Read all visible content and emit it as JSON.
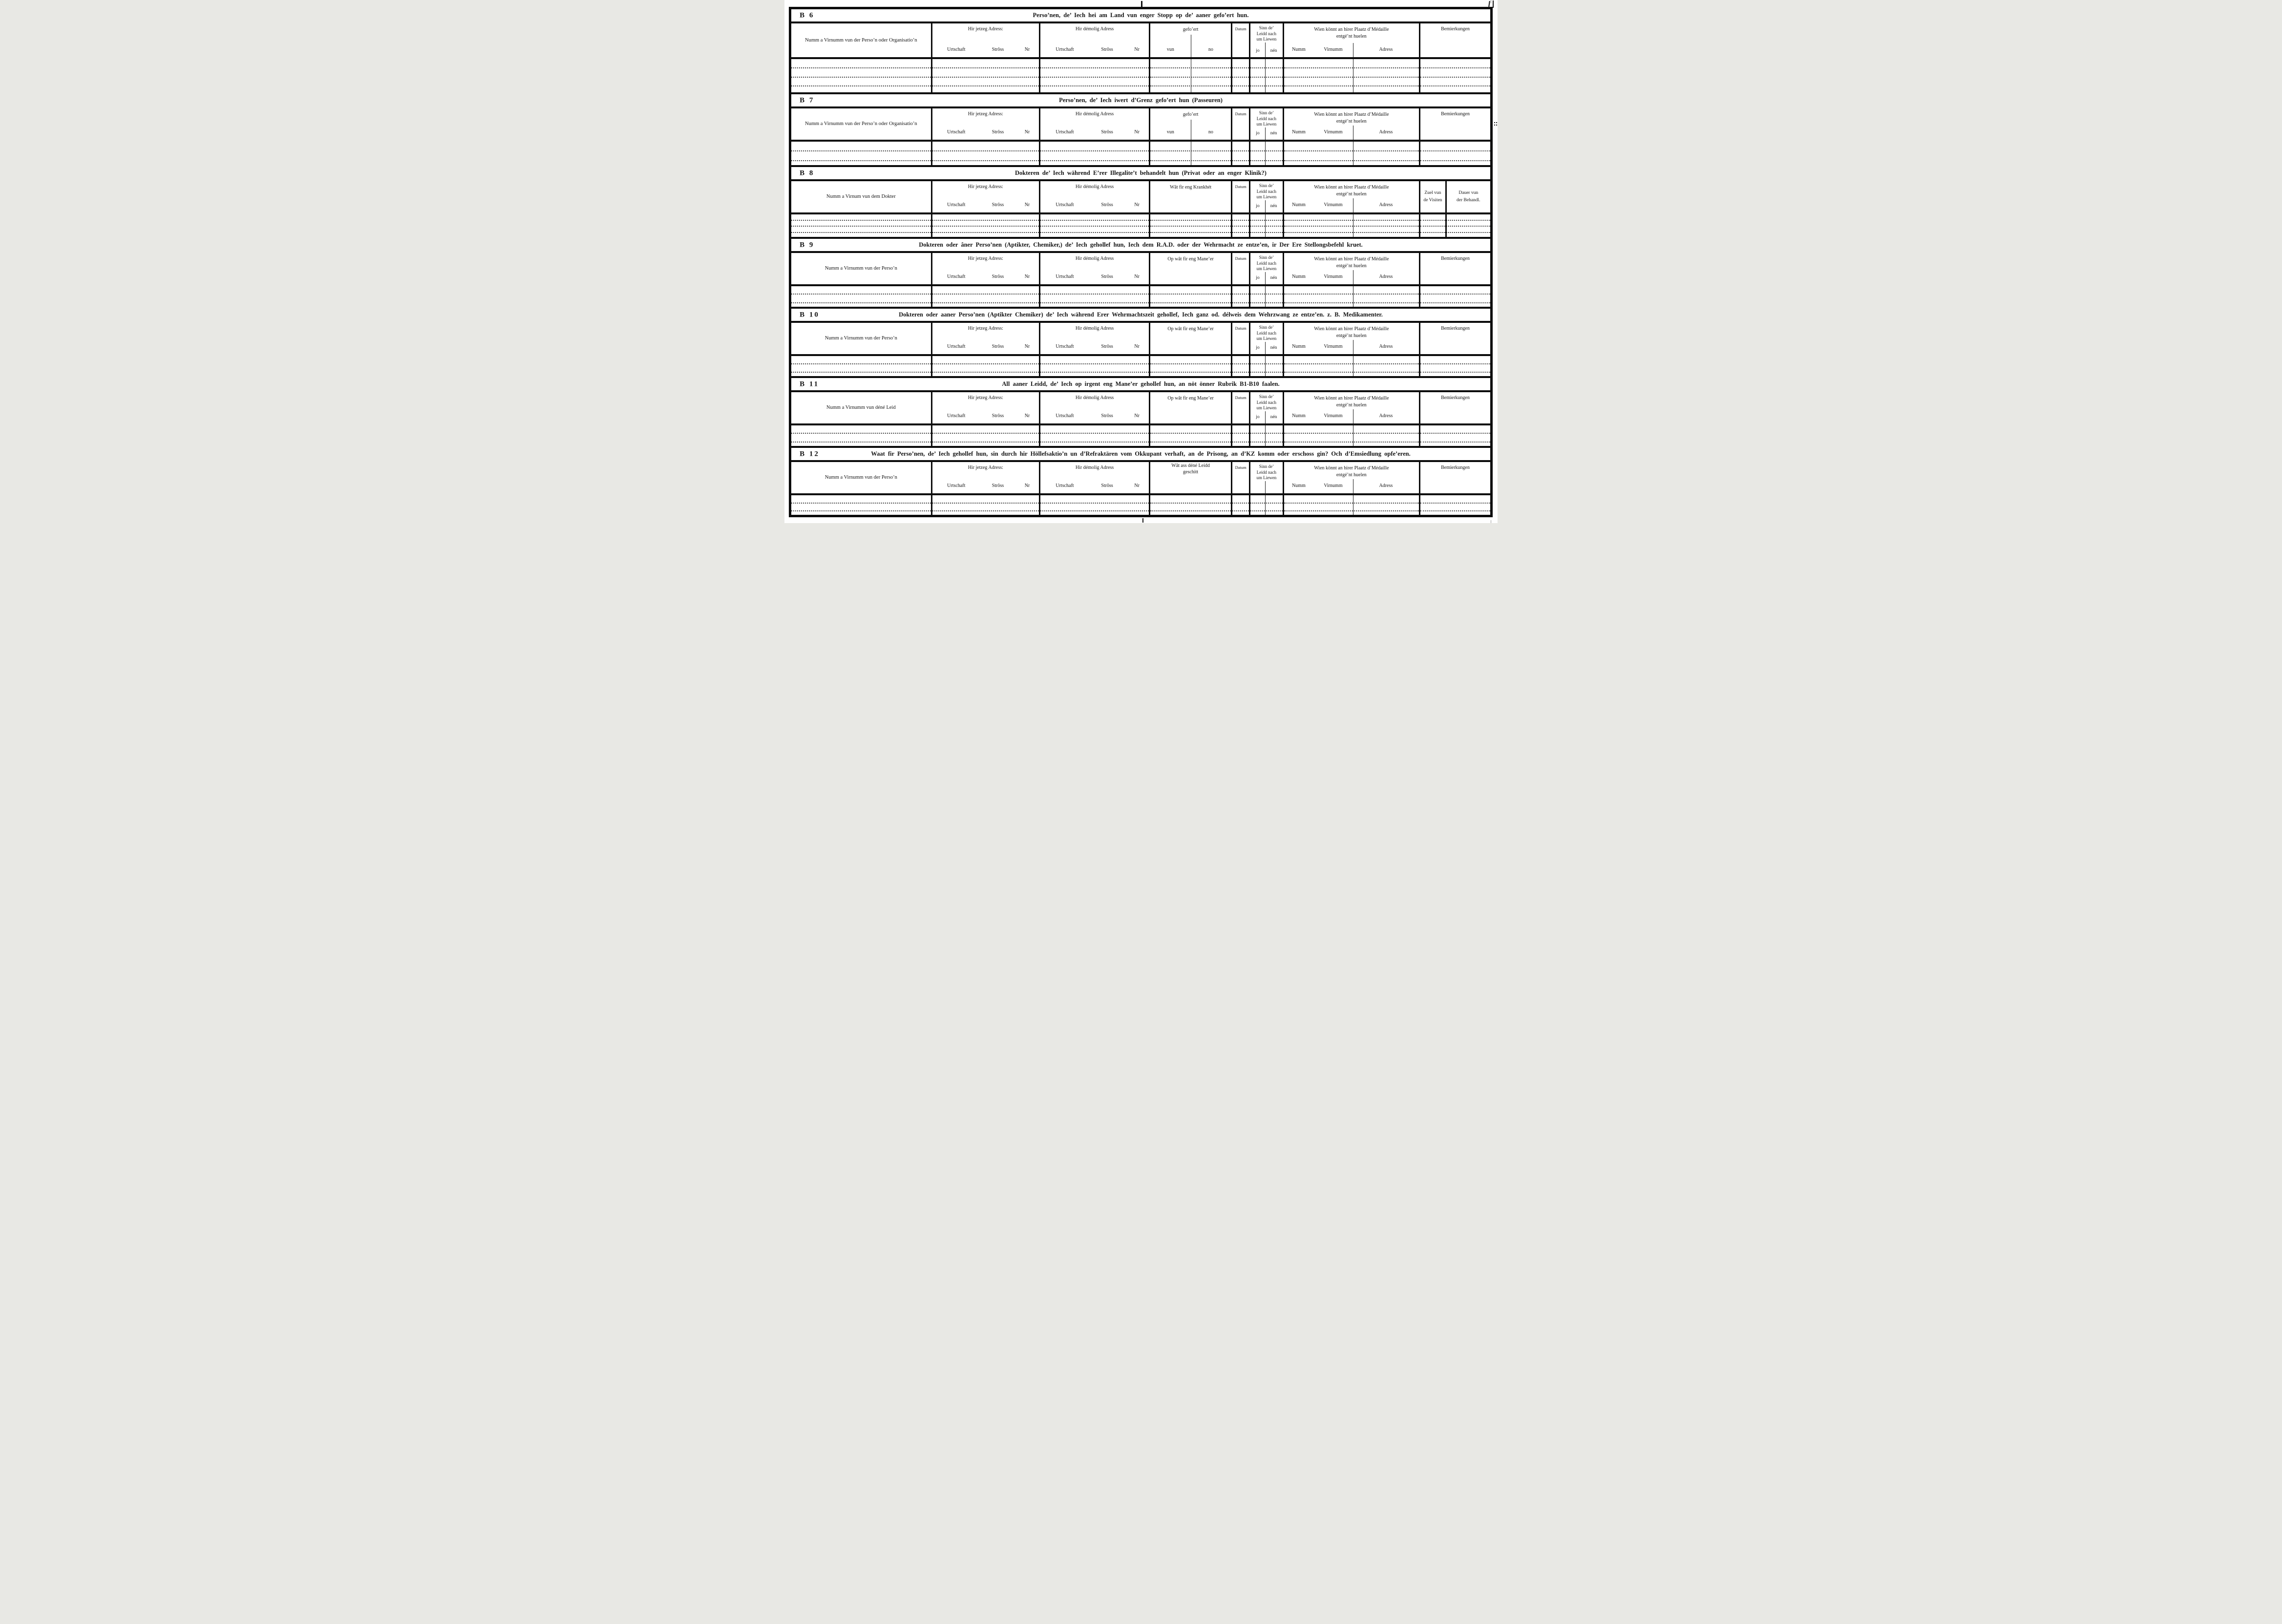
{
  "form": {
    "headers": {
      "jetzeg": {
        "label": "Hir jetzeg Adress:",
        "urtschaft": "Urtschaft",
        "stross": "Strôss",
        "nr": "Nr"
      },
      "demolig": {
        "label": "Hir démolig Adress",
        "urtschaft": "Urtschaft",
        "stross": "Strôss",
        "nr": "Nr"
      },
      "datum": "Datum",
      "sinn": {
        "l1": "Sinn de’",
        "l2": "Leidd nach",
        "l3": "um Liewen",
        "jo": "jo",
        "nen": "nén"
      },
      "wien": {
        "l1": "Wien könnt an hirer Plaatz d’Médaille",
        "l2": "entgé’nt huelen",
        "numm": "Numm",
        "virnumm": "Virnumm",
        "adress": "Adress"
      },
      "bemierkungen": "Bemierkungen",
      "zuel": {
        "l1": "Zuel vun",
        "l2": "de Visiten"
      },
      "dauer": {
        "l1": "Dauer vun",
        "l2": "der Behandl."
      }
    },
    "sections": [
      {
        "id": "B 6",
        "title": "Perso’nen, de’ Iech hei am Land vun enger Stopp op de’ aaner gefo’ert hun.",
        "name_header": "Numm a Virnumm vun der Perso’n oder Organisatio’n",
        "middle": {
          "l1": "gefo’ert",
          "l2": "",
          "s1": "vun",
          "s2": "no",
          "align": "top"
        },
        "sinn_sub": true,
        "right": "bem",
        "rows": 3
      },
      {
        "id": "B 7",
        "title": "Perso’nen, de’ Iech iwert d’Grenz gefo’ert hun (Passeuren)",
        "name_header": "Numm a Virnumm vun der Perso’n oder Organisatio’n",
        "middle": {
          "l1": "gefo’ert",
          "l2": "",
          "s1": "vun",
          "s2": "no",
          "align": "top"
        },
        "sinn_sub": true,
        "right": "bem",
        "rows": 2
      },
      {
        "id": "B 8",
        "title": "Dokteren de’ Iech während E’rer Illegalite’t behandelt hun (Privat oder an enger Klinik?)",
        "name_header": "Numm a Virnum vun dem Dokter",
        "middle": {
          "l1": "Wât fir eng Krankhét",
          "l2": "",
          "s1": "",
          "s2": "",
          "align": "top"
        },
        "sinn_sub": true,
        "right": "visits",
        "rows": 3
      },
      {
        "id": "B 9",
        "title": "Dokteren oder âner Perso’nen (Aptikter, Chemiker,) de’ Iech gehollef hun, Iech dem R.A.D. oder der Wehrmacht ze entze’en, ir Der Ere Stellongsbefehl kruet.",
        "name_header": "Numm a Virnumm vun der Perso’n",
        "middle": {
          "l1": "Op wât fir eng Mane’er",
          "l2": "",
          "s1": "",
          "s2": "",
          "align": "top"
        },
        "sinn_sub": true,
        "right": "bem",
        "rows": 2
      },
      {
        "id": "B 10",
        "title": "Dokteren oder aaner Perso’nen (Aptikter Chemiker) de’ Iech während Erer Wehrmachtszeit gehollef, Iech ganz od. délweis dem Wehrzwang ze entze’en. z. B. Medikamenter.",
        "name_header": "Numm a Virnumm vun der Perso’n",
        "middle": {
          "l1": "Op wât fir eng Mane’er",
          "l2": "",
          "s1": "",
          "s2": "",
          "align": "top"
        },
        "sinn_sub": true,
        "right": "bem",
        "rows": 2
      },
      {
        "id": "B 11",
        "title": "All aaner Leidd, de’ Iech op irgent eng Mane’er gehollef hun, an nöt önner Rubrik B1-B10 faalen.",
        "name_header": "Numm a Virnumm vun déné Leid",
        "middle": {
          "l1": "Op wât fir eng Mane’er",
          "l2": "",
          "s1": "",
          "s2": "",
          "align": "top"
        },
        "sinn_sub": true,
        "right": "bem",
        "rows": 2
      },
      {
        "id": "B 12",
        "title": "Waat fir Perso’nen, de’ Iech gehollef hun, sin durch hir Höllefsaktio’n un d’Refraktären vom Okkupant verhaft, an de Prisong, an d’KZ komm oder erschoss gin? Och d’Emsiedlung opfe’eren.",
        "name_header": "Numm a Virnumm vun der Perso’n",
        "middle": {
          "l1": "Wât ass déné Leidd",
          "l2": "geschitt",
          "s1": "",
          "s2": "",
          "align": "center"
        },
        "sinn_sub": false,
        "right": "bem",
        "rows": 2
      }
    ]
  }
}
